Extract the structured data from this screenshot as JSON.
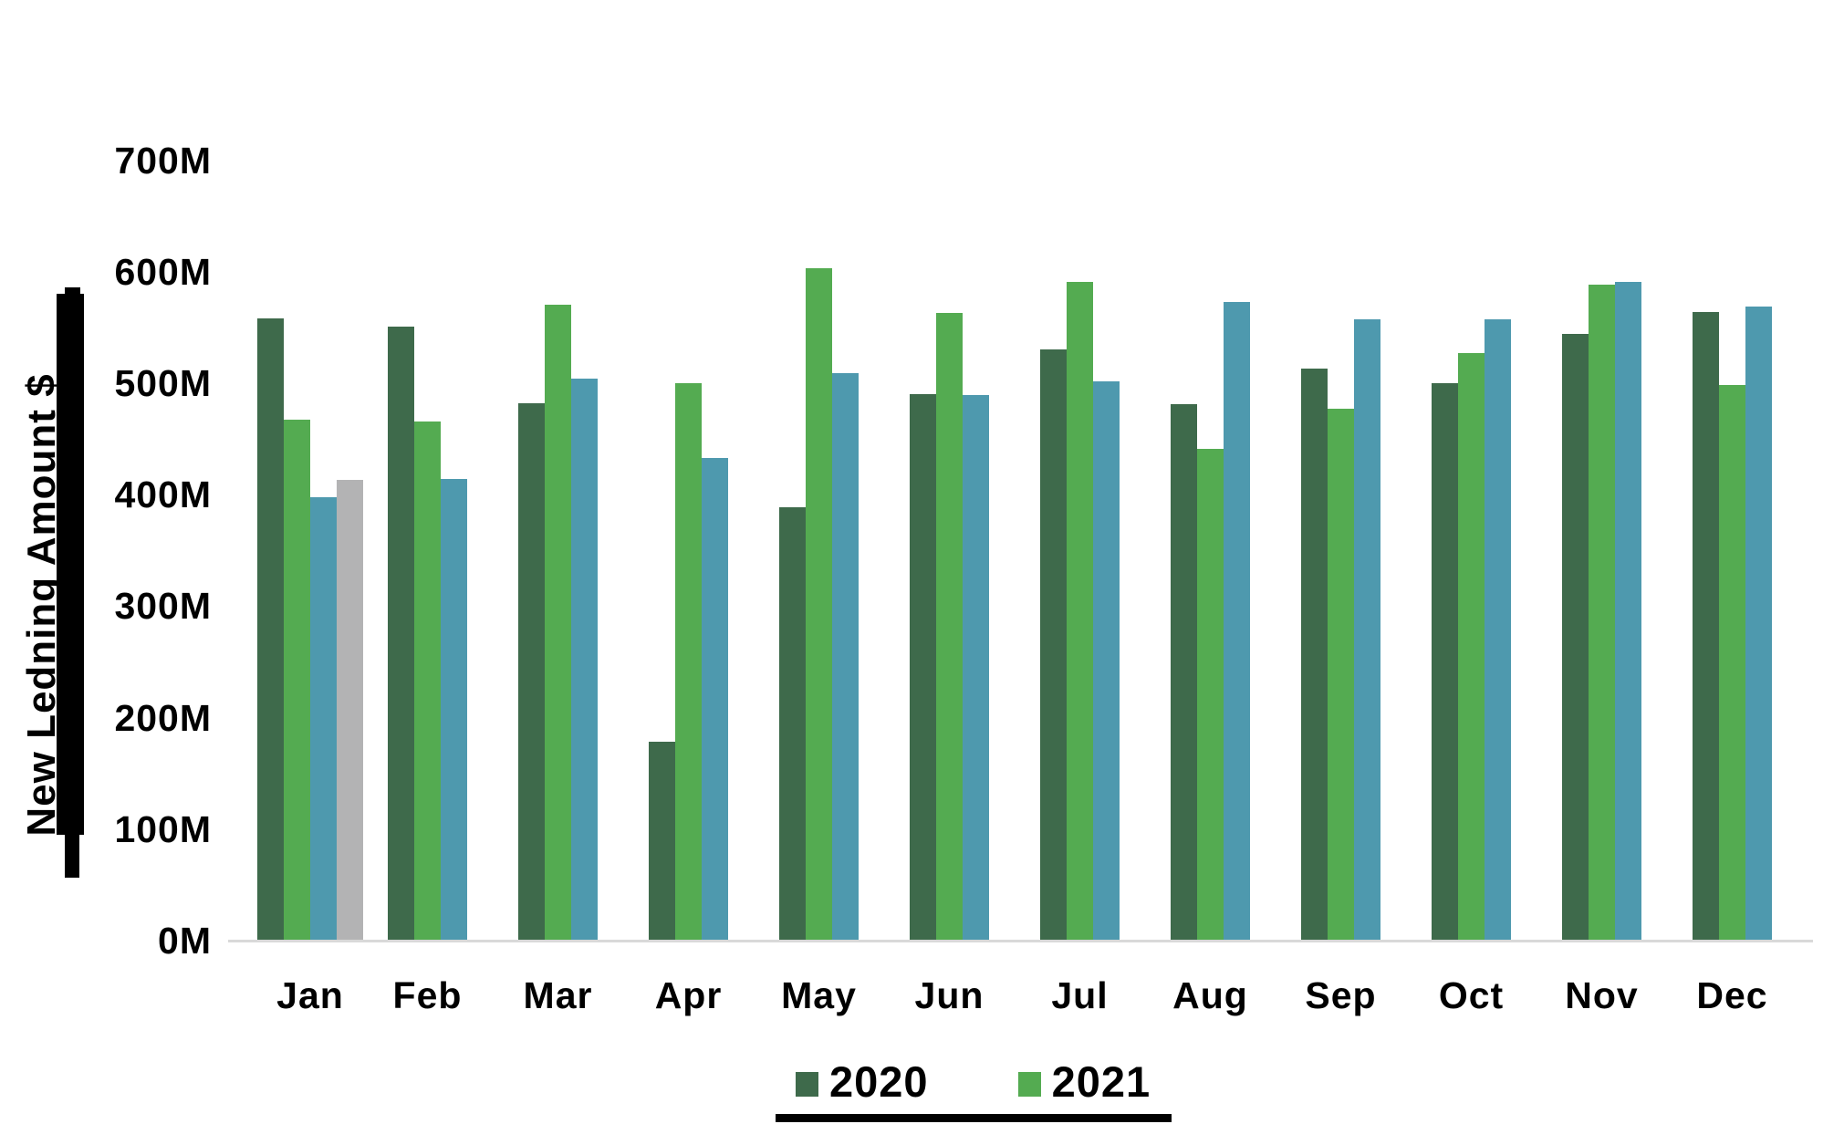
{
  "chart_data": {
    "type": "bar",
    "title": "",
    "xlabel": "",
    "ylabel": "New Ledning Amount $",
    "unit": "$ millions",
    "grid": false,
    "ylim": [
      0,
      700
    ],
    "y_ticks": [
      {
        "value": 0,
        "label": "0M"
      },
      {
        "value": 100,
        "label": "100M"
      },
      {
        "value": 200,
        "label": "200M"
      },
      {
        "value": 300,
        "label": "300M"
      },
      {
        "value": 400,
        "label": "400M"
      },
      {
        "value": 500,
        "label": "500M"
      },
      {
        "value": 600,
        "label": "600M"
      },
      {
        "value": 700,
        "label": "700M"
      }
    ],
    "categories": [
      "Jan",
      "Feb",
      "Mar",
      "Apr",
      "May",
      "Jun",
      "Jul",
      "Aug",
      "Sep",
      "Oct",
      "Nov",
      "Dec"
    ],
    "series": [
      {
        "name": "2020",
        "color": "#3E6A4B",
        "in_legend": true,
        "values": [
          558,
          551,
          482,
          178,
          389,
          490,
          530,
          481,
          513,
          500,
          544,
          564
        ]
      },
      {
        "name": "2021",
        "color": "#54AB51",
        "in_legend": true,
        "values": [
          467,
          466,
          570,
          500,
          603,
          563,
          591,
          441,
          477,
          527,
          588,
          498
        ]
      },
      {
        "name": "",
        "color": "#4E99AE",
        "in_legend": false,
        "values": [
          398,
          414,
          504,
          433,
          509,
          489,
          502,
          573,
          557,
          557,
          591,
          569
        ]
      },
      {
        "name": "",
        "color": "#B3B3B4",
        "in_legend": false,
        "values": [
          413,
          null,
          null,
          null,
          null,
          null,
          null,
          null,
          null,
          null,
          null,
          null
        ]
      }
    ],
    "legend": {
      "position": "bottom",
      "entries": [
        {
          "label": "2020",
          "color": "#3E6A4B"
        },
        {
          "label": "2021",
          "color": "#54AB51"
        }
      ]
    }
  },
  "colors": {
    "background": "#FFFFFF",
    "axis_baseline": "#D9D9D9",
    "text": "#000000",
    "annotation_bar": "#000000"
  }
}
